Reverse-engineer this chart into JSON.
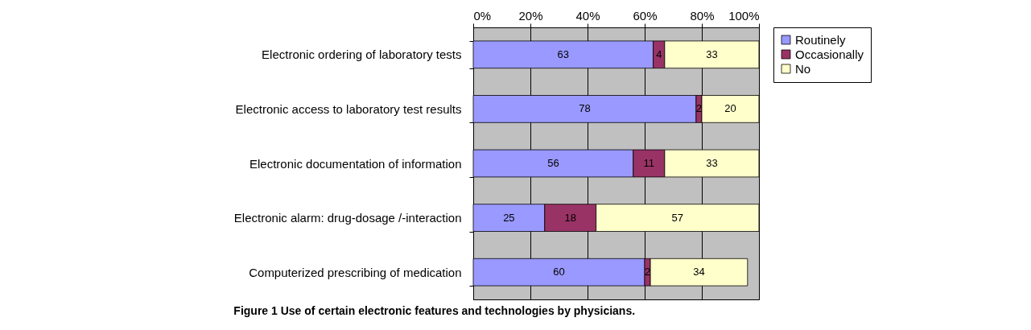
{
  "chart_data": {
    "type": "bar",
    "orientation": "horizontal",
    "stacked": true,
    "categories": [
      "Electronic ordering of laboratory tests",
      "Electronic access to laboratory test results",
      "Electronic documentation of information",
      "Electronic alarm: drug-dosage /-interaction",
      "Computerized prescribing of medication"
    ],
    "series": [
      {
        "name": "Routinely",
        "color": "#9999ff",
        "values": [
          63,
          78,
          56,
          25,
          60
        ],
        "value_labels": [
          "63",
          "78",
          "56",
          "25",
          "60"
        ]
      },
      {
        "name": "Occasionally",
        "color": "#993366",
        "values": [
          4,
          2,
          11,
          18,
          2
        ],
        "value_labels": [
          "4",
          "2",
          "11",
          "18",
          "2"
        ]
      },
      {
        "name": "No",
        "color": "#ffffcc",
        "values": [
          33,
          20,
          33,
          57,
          34
        ],
        "value_labels": [
          "33",
          "20",
          "33",
          "57",
          "34"
        ]
      }
    ],
    "xlim": [
      0,
      100
    ],
    "xticks": [
      {
        "value": 0,
        "label": "0%"
      },
      {
        "value": 20,
        "label": "20%"
      },
      {
        "value": 40,
        "label": "40%"
      },
      {
        "value": 60,
        "label": "60%"
      },
      {
        "value": 80,
        "label": "80%"
      },
      {
        "value": 100,
        "label": "100%"
      }
    ],
    "grid": "x",
    "legend": "right",
    "annotations": [
      "Figure 1 Use of certain electronic features and technologies by physicians."
    ]
  }
}
